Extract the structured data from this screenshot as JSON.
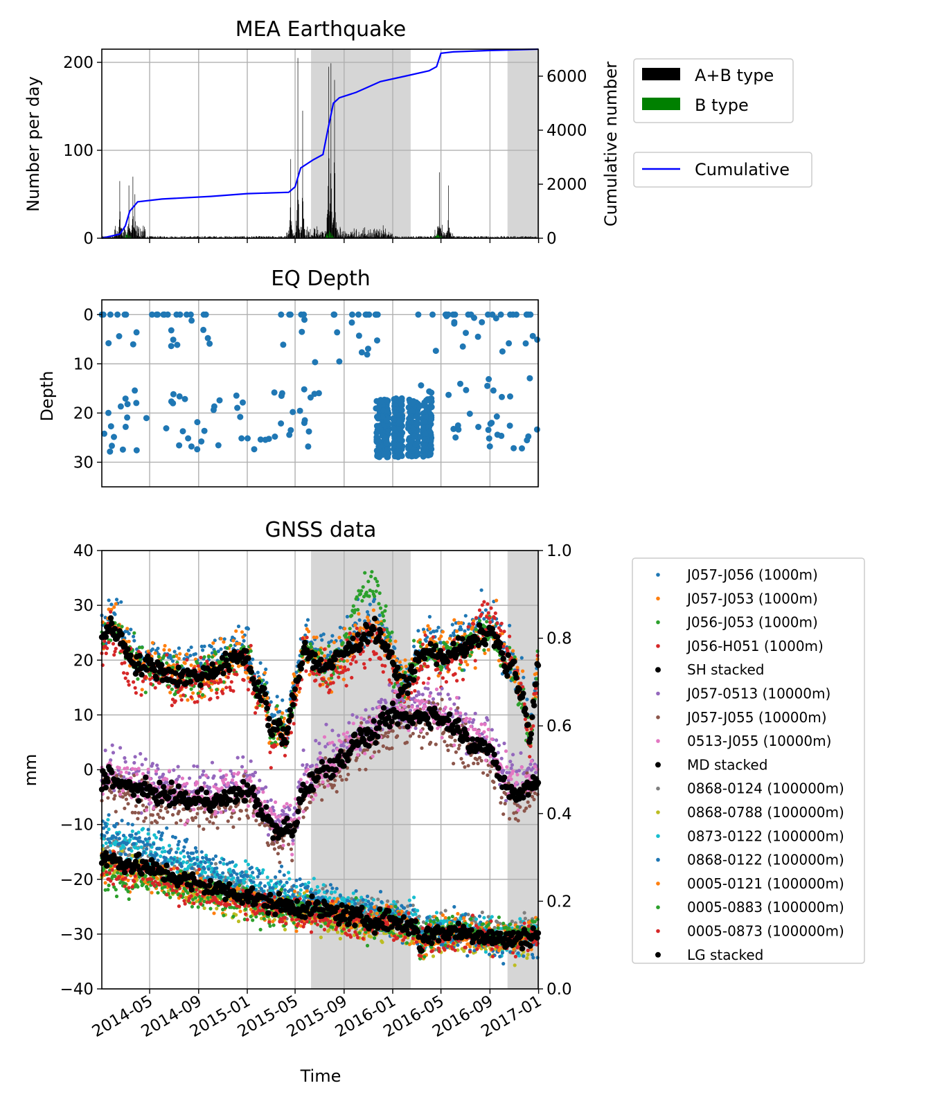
{
  "chart_data": [
    {
      "type": "bar",
      "title": "MEA Earthquake",
      "ylabel": "Number per day",
      "ylabel_right": "Cumulative number",
      "xlim": [
        "2014-01-01",
        "2016-12-31"
      ],
      "ylim": [
        0,
        215
      ],
      "ylim_right": [
        0,
        7000
      ],
      "yticks": [
        0,
        100,
        200
      ],
      "yticks_right": [
        0,
        2000,
        4000,
        6000
      ],
      "grid": true,
      "shaded_periods": [
        [
          "2015-06-10",
          "2016-02-15"
        ],
        [
          "2016-10-15",
          "2016-12-31"
        ]
      ],
      "legend": {
        "placement": "outside-right",
        "entries": [
          "A+B type",
          "B type"
        ],
        "entries_secondary": [
          "Cumulative"
        ]
      },
      "series": [
        {
          "name": "A+B type",
          "color": "#000000",
          "kind": "bar",
          "peaks": [
            {
              "date": "2014-02-15",
              "value": 65
            },
            {
              "date": "2014-03-10",
              "value": 60
            },
            {
              "date": "2014-03-20",
              "value": 70
            },
            {
              "date": "2014-03-25",
              "value": 50
            },
            {
              "date": "2015-04-20",
              "value": 90
            },
            {
              "date": "2015-05-08",
              "value": 205
            },
            {
              "date": "2015-05-20",
              "value": 145
            },
            {
              "date": "2015-07-24",
              "value": 195
            },
            {
              "date": "2015-07-30",
              "value": 199
            },
            {
              "date": "2015-08-08",
              "value": 180
            },
            {
              "date": "2016-04-27",
              "value": 75
            },
            {
              "date": "2016-05-20",
              "value": 60
            }
          ]
        },
        {
          "name": "B type",
          "color": "#008000",
          "kind": "bar",
          "peaks": [
            {
              "date": "2014-03-05",
              "value": 8
            },
            {
              "date": "2015-07-26",
              "value": 10
            },
            {
              "date": "2016-04-25",
              "value": 6
            }
          ]
        },
        {
          "name": "Cumulative",
          "color": "#0000ff",
          "kind": "line",
          "axis": "right",
          "x": [
            "2014-01-01",
            "2014-02-15",
            "2014-03-01",
            "2014-03-12",
            "2014-04-01",
            "2014-06-01",
            "2014-10-01",
            "2015-01-01",
            "2015-04-15",
            "2015-05-01",
            "2015-05-15",
            "2015-06-15",
            "2015-07-10",
            "2015-07-22",
            "2015-08-05",
            "2015-08-20",
            "2015-10-01",
            "2015-12-01",
            "2016-02-01",
            "2016-04-01",
            "2016-04-20",
            "2016-05-01",
            "2016-06-01",
            "2016-09-01",
            "2016-12-31"
          ],
          "y": [
            0,
            150,
            450,
            1000,
            1350,
            1450,
            1550,
            1650,
            1700,
            1900,
            2600,
            2900,
            3100,
            4000,
            5000,
            5200,
            5400,
            5800,
            6000,
            6200,
            6350,
            6850,
            6900,
            6950,
            7000
          ]
        }
      ]
    },
    {
      "type": "scatter",
      "title": "EQ Depth",
      "ylabel": "Depth",
      "xlim": [
        "2014-01-01",
        "2016-12-31"
      ],
      "ylim": [
        35,
        -3
      ],
      "yticks": [
        0,
        10,
        20,
        30
      ],
      "grid": true,
      "series": [
        {
          "color": "#1f77b4",
          "clusters": [
            {
              "from": "2014-01-01",
              "to": "2014-09-30",
              "depth_range": [
                0,
                8
              ]
            },
            {
              "from": "2014-01-01",
              "to": "2015-06-30",
              "depth_range": [
                15,
                28
              ]
            },
            {
              "from": "2015-03-15",
              "to": "2015-11-30",
              "depth_range": [
                0,
                10
              ]
            },
            {
              "from": "2015-11-20",
              "to": "2016-04-15",
              "depth_range": [
                17,
                29
              ],
              "dense": true
            },
            {
              "from": "2016-03-01",
              "to": "2016-12-31",
              "depth_range": [
                12,
                28
              ]
            },
            {
              "from": "2016-03-01",
              "to": "2016-12-31",
              "depth_range": [
                0,
                9
              ]
            }
          ]
        }
      ]
    },
    {
      "type": "scatter",
      "title": "GNSS data",
      "xlabel": "Time",
      "ylabel": "mm",
      "xlim": [
        "2014-01-01",
        "2016-12-31"
      ],
      "ylim": [
        -40,
        40
      ],
      "ylim_right": [
        0.0,
        1.0
      ],
      "yticks": [
        -40,
        -30,
        -20,
        -10,
        0,
        10,
        20,
        30,
        40
      ],
      "yticks_right": [
        "0.0",
        "0.2",
        "0.4",
        "0.6",
        "0.8",
        "1.0"
      ],
      "xticks": [
        "2014-05",
        "2014-09",
        "2015-01",
        "2015-05",
        "2015-09",
        "2016-01",
        "2016-05",
        "2016-09",
        "2017-01"
      ],
      "grid": true,
      "shaded_periods": [
        [
          "2015-06-10",
          "2016-02-15"
        ],
        [
          "2016-10-15",
          "2016-12-31"
        ]
      ],
      "legend": {
        "placement": "outside-right",
        "entries": [
          "J057-J056 (1000m)",
          "J057-J053 (1000m)",
          "J056-J053 (1000m)",
          "J056-H051 (1000m)",
          "SH stacked",
          "J057-0513 (10000m)",
          "J057-J055 (10000m)",
          "0513-J055 (10000m)",
          "MD stacked",
          "0868-0124 (100000m)",
          "0868-0788 (100000m)",
          "0873-0122 (100000m)",
          "0868-0122 (100000m)",
          "0005-0121 (100000m)",
          "0005-0883 (100000m)",
          "0005-0873 (100000m)",
          "LG stacked"
        ]
      },
      "series": [
        {
          "name": "J057-J056 (1000m)",
          "color": "#1f77b4",
          "group": "SH",
          "offset": 2,
          "spread": 2.2
        },
        {
          "name": "J057-J053 (1000m)",
          "color": "#ff7f0e",
          "group": "SH",
          "offset": 0.5,
          "spread": 2.2
        },
        {
          "name": "J056-J053 (1000m)",
          "color": "#2ca02c",
          "group": "SH",
          "offset": 0,
          "spread": 1.8,
          "bump": [
            {
              "from": "2015-08-20",
              "to": "2016-01-10",
              "amount": 8
            }
          ]
        },
        {
          "name": "J056-H051 (1000m)",
          "color": "#d62728",
          "group": "SH",
          "offset": -1.5,
          "spread": 2.2,
          "bump": [
            {
              "from": "2016-07-01",
              "to": "2016-12-01",
              "amount": 5
            }
          ]
        },
        {
          "name": "SH stacked",
          "color": "#000000",
          "group": "SH",
          "stacked": true,
          "x": [
            "2014-01-01",
            "2014-01-20",
            "2014-02-10",
            "2014-03-01",
            "2014-04-01",
            "2014-05-01",
            "2014-06-01",
            "2014-07-01",
            "2014-08-01",
            "2014-09-01",
            "2014-10-01",
            "2014-11-01",
            "2014-12-01",
            "2014-12-20",
            "2015-01-05",
            "2015-01-20",
            "2015-02-15",
            "2015-03-01",
            "2015-03-20",
            "2015-04-10",
            "2015-04-25",
            "2015-05-10",
            "2015-05-25",
            "2015-06-15",
            "2015-07-01",
            "2015-08-01",
            "2015-08-20",
            "2015-09-15",
            "2015-10-15",
            "2015-11-10",
            "2015-12-01",
            "2015-12-20",
            "2016-01-10",
            "2016-01-25",
            "2016-02-10",
            "2016-03-01",
            "2016-03-20",
            "2016-04-10",
            "2016-05-01",
            "2016-06-01",
            "2016-07-01",
            "2016-08-01",
            "2016-09-01",
            "2016-09-20",
            "2016-10-10",
            "2016-10-25",
            "2016-11-10",
            "2016-11-25",
            "2016-12-10",
            "2016-12-31"
          ],
          "y": [
            24,
            26,
            25,
            22,
            19,
            19,
            18,
            17,
            17,
            17,
            18,
            19,
            20,
            21,
            20,
            15,
            14,
            6,
            8,
            5,
            13,
            17,
            23,
            20,
            19,
            19,
            21,
            22,
            24,
            26,
            24,
            22,
            17,
            15,
            16,
            20,
            21,
            22,
            20,
            22,
            22,
            24,
            25,
            24,
            18,
            20,
            15,
            12,
            5,
            20
          ]
        },
        {
          "name": "J057-0513 (10000m)",
          "color": "#9467bd",
          "group": "MD",
          "offset": 2,
          "spread": 2
        },
        {
          "name": "J057-J055 (10000m)",
          "color": "#8c564b",
          "group": "MD",
          "offset": -1.5,
          "spread": 2.2
        },
        {
          "name": "0513-J055 (10000m)",
          "color": "#e377c2",
          "group": "MD",
          "offset": 1,
          "spread": 2
        },
        {
          "name": "MD stacked",
          "color": "#000000",
          "group": "MD",
          "stacked": true,
          "x": [
            "2014-01-01",
            "2014-01-20",
            "2014-02-15",
            "2014-03-15",
            "2014-04-15",
            "2014-05-15",
            "2014-06-15",
            "2014-07-15",
            "2014-08-15",
            "2014-09-15",
            "2014-10-15",
            "2014-11-15",
            "2014-12-15",
            "2015-01-10",
            "2015-02-01",
            "2015-02-20",
            "2015-03-10",
            "2015-03-25",
            "2015-04-10",
            "2015-04-25",
            "2015-05-15",
            "2015-06-10",
            "2015-07-10",
            "2015-08-10",
            "2015-09-10",
            "2015-10-10",
            "2015-11-10",
            "2015-12-10",
            "2016-01-10",
            "2016-02-10",
            "2016-03-10",
            "2016-04-10",
            "2016-05-10",
            "2016-06-10",
            "2016-07-10",
            "2016-08-10",
            "2016-09-10",
            "2016-10-01",
            "2016-10-20",
            "2016-11-10",
            "2016-12-01",
            "2016-12-31"
          ],
          "y": [
            -2,
            -0.5,
            -3,
            -3,
            -4,
            -4,
            -5,
            -5,
            -6,
            -5,
            -6,
            -5,
            -4,
            -4,
            -7,
            -9,
            -11,
            -12,
            -10,
            -12,
            -5,
            -2,
            0,
            1,
            3,
            6,
            6,
            9,
            10,
            9,
            10,
            10,
            9,
            8,
            5,
            5,
            2,
            -2,
            -4,
            -5,
            -3,
            -2
          ]
        },
        {
          "name": "0868-0124 (100000m)",
          "color": "#7f7f7f",
          "group": "LG",
          "offset": 1,
          "spread": 1.5
        },
        {
          "name": "0868-0788 (100000m)",
          "color": "#bcbd22",
          "group": "LG",
          "offset": -1,
          "spread": 1.5
        },
        {
          "name": "0873-0122 (100000m)",
          "color": "#17becf",
          "group": "LG",
          "offset": 4,
          "spread": 1.5,
          "tilt": -4
        },
        {
          "name": "0868-0122 (100000m)",
          "color": "#1f77b4",
          "group": "LG",
          "offset": 5,
          "spread": 1.8,
          "tilt": -6
        },
        {
          "name": "0005-0121 (100000m)",
          "color": "#ff7f0e",
          "group": "LG",
          "offset": -1.5,
          "spread": 1.5,
          "tilt": 2
        },
        {
          "name": "0005-0883 (100000m)",
          "color": "#2ca02c",
          "group": "LG",
          "offset": -3,
          "spread": 1.5,
          "tilt": 4
        },
        {
          "name": "0005-0873 (100000m)",
          "color": "#d62728",
          "group": "LG",
          "offset": -1.5,
          "spread": 1.5,
          "tilt": 1
        },
        {
          "name": "LG stacked",
          "color": "#000000",
          "group": "LG",
          "stacked": true,
          "x": [
            "2014-01-01",
            "2014-03-01",
            "2014-05-01",
            "2014-07-01",
            "2014-09-01",
            "2014-11-01",
            "2015-01-01",
            "2015-03-01",
            "2015-05-01",
            "2015-07-01",
            "2015-09-01",
            "2015-11-01",
            "2016-01-01",
            "2016-02-01",
            "2016-03-01",
            "2016-03-10",
            "2016-04-01",
            "2016-06-01",
            "2016-08-01",
            "2016-10-01",
            "2016-11-01",
            "2016-12-31"
          ],
          "y": [
            -16,
            -17,
            -18,
            -19.5,
            -21,
            -22,
            -23,
            -24.5,
            -25,
            -25.5,
            -26.5,
            -27.5,
            -27.5,
            -28.5,
            -28.5,
            -32,
            -30,
            -29.5,
            -30,
            -31,
            -31,
            -30
          ]
        }
      ]
    }
  ]
}
